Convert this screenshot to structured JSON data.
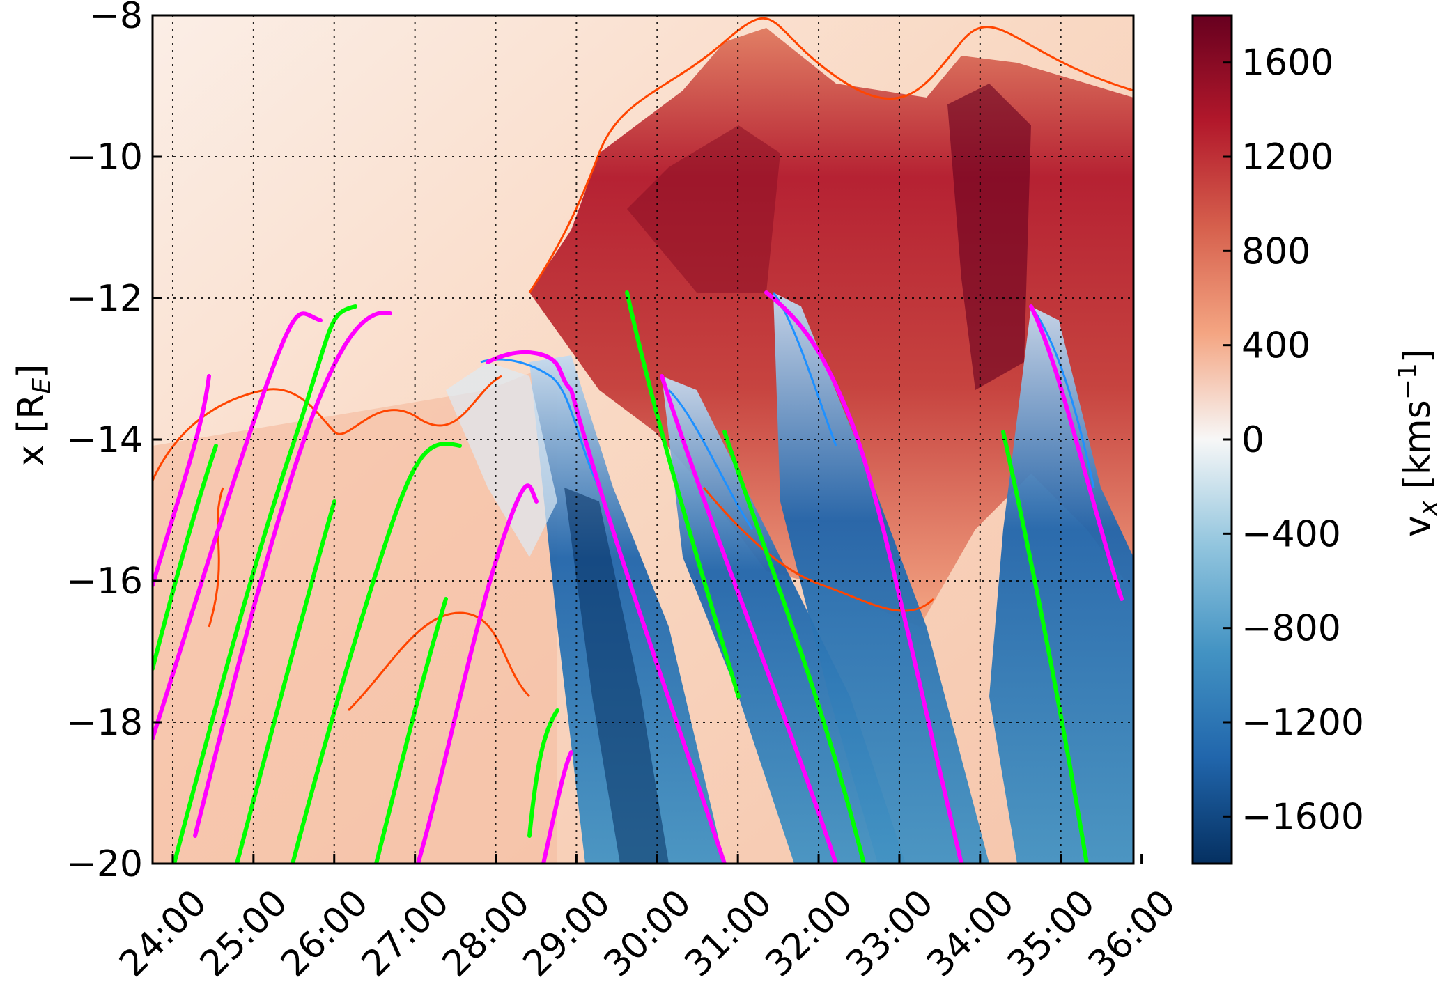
{
  "chart_data": {
    "type": "heatmap",
    "title": "",
    "xlabel": "",
    "ylabel_main": "x [R",
    "ylabel_sub": "E",
    "ylabel_close": "]",
    "x_ticks": [
      "24:00",
      "25:00",
      "26:00",
      "27:00",
      "28:00",
      "29:00",
      "30:00",
      "31:00",
      "32:00",
      "33:00",
      "34:00",
      "35:00",
      "36:00"
    ],
    "x_range_minutes": [
      23.75,
      35.9
    ],
    "y_ticks": [
      "−8",
      "−10",
      "−12",
      "−14",
      "−16",
      "−18",
      "−20"
    ],
    "ylim": [
      -20,
      -8
    ],
    "grid": true,
    "colorbar": {
      "label_main": "v",
      "label_sub": "x",
      "label_units": " [kms",
      "label_exp": "−1",
      "label_close": "]",
      "ticks": [
        "1600",
        "1200",
        "800",
        "400",
        "0",
        "−400",
        "−800",
        "−1200",
        "−1600"
      ],
      "range": [
        -1800,
        1800
      ],
      "colormap": "RdBu_r"
    },
    "contours": [
      {
        "color": "#ff4500",
        "meaning": "positive vx level"
      },
      {
        "color": "#1e90ff",
        "meaning": "negative vx level"
      },
      {
        "color": "#ff00ff",
        "meaning": "dotted tracks"
      },
      {
        "color": "#00ff00",
        "meaning": "dotted tracks"
      }
    ],
    "features": [
      {
        "kind": "earthward_flow_region",
        "t_start": 28.5,
        "t_end": 35.9,
        "x_top": -8.3,
        "x_bottom": -16
      },
      {
        "kind": "tailward_stripe",
        "t_start": 28.9,
        "x_start": -13,
        "t_end": 30.3,
        "x_end": -20
      },
      {
        "kind": "tailward_stripe",
        "t_start": 29.7,
        "x_start": -13.2,
        "t_end": 31.2,
        "x_end": -20
      },
      {
        "kind": "tailward_stripe",
        "t_start": 31.2,
        "x_start": -12,
        "t_end": 32.7,
        "x_end": -20
      },
      {
        "kind": "tailward_stripe",
        "t_start": 34.2,
        "x_start": -12.3,
        "t_end": 35.7,
        "x_end": -20
      }
    ]
  }
}
